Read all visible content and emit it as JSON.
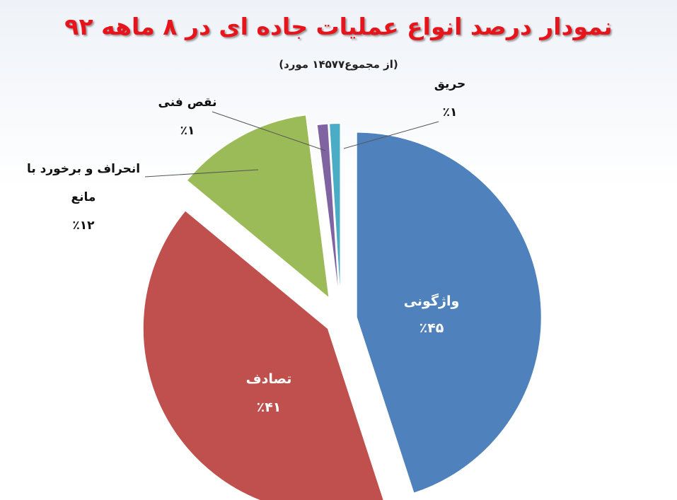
{
  "chart_data": {
    "type": "pie",
    "title": "نمودار درصد انواع عملیات جاده ای در ۸ ماهه ۹۲",
    "subtitle": "(از مجموع۱۴۵۷۷ مورد)",
    "slices": [
      {
        "label": "واژگونی",
        "value": 45,
        "value_label": "٪۴۵",
        "color": "#4f81bd"
      },
      {
        "label": "تصادف",
        "value": 41,
        "value_label": "٪۴۱",
        "color": "#c0504d"
      },
      {
        "label": "انحراف و برخورد با مانع",
        "label_lines": [
          "انحراف و برخورد با",
          "مانع"
        ],
        "value": 12,
        "value_label": "٪۱۲",
        "color": "#9bbb59"
      },
      {
        "label": "نقص فنی",
        "value": 1,
        "value_label": "٪۱",
        "color": "#8064a2"
      },
      {
        "label": "حریق",
        "value": 1,
        "value_label": "٪۱",
        "color": "#4bacc6"
      }
    ],
    "legend": "none"
  }
}
